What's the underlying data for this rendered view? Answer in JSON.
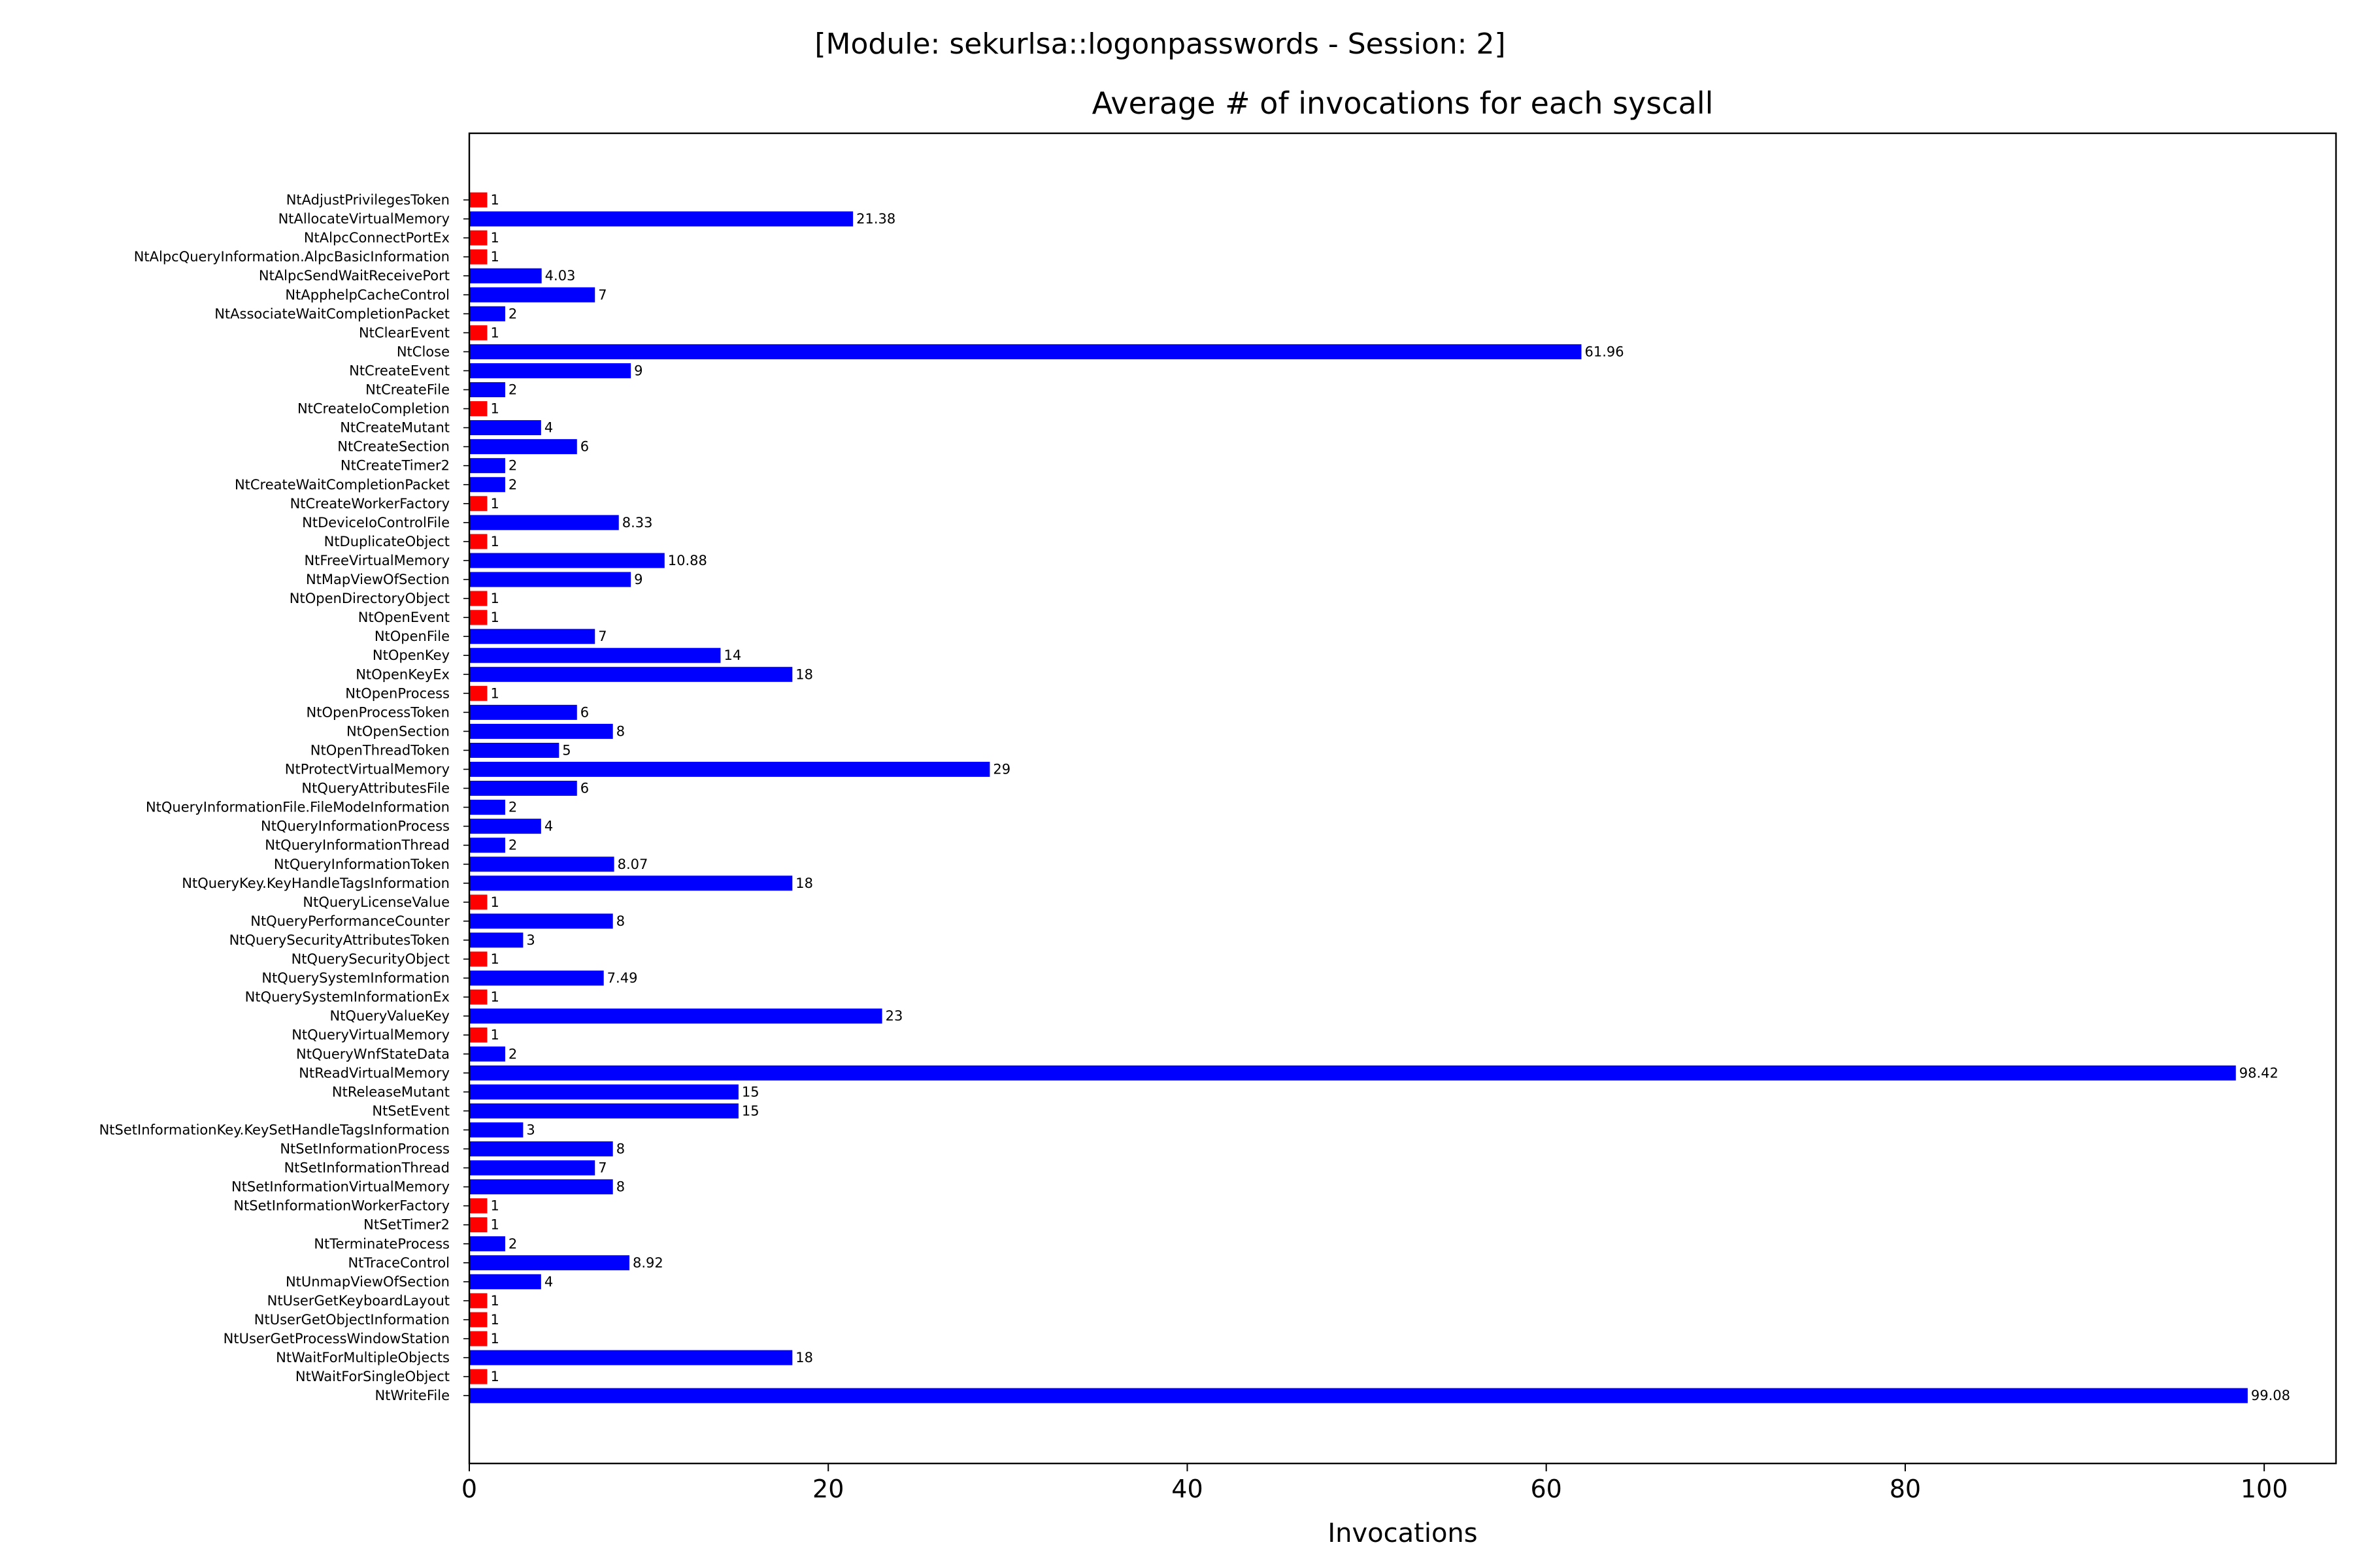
{
  "suptitle": "[Module: sekurlsa::logonpasswords - Session: 2]",
  "chart_data": {
    "type": "bar",
    "orientation": "horizontal",
    "title": "Average # of invocations for each syscall",
    "xlabel": "Invocations",
    "ylabel": "",
    "xlim": [
      0,
      104
    ],
    "xticks": [
      0,
      20,
      40,
      60,
      80,
      100
    ],
    "grid": false,
    "colors": {
      "low": "#ff0000",
      "normal": "#0000ff",
      "axis": "#000000"
    },
    "color_rule": "value equal to 1 is red, otherwise blue",
    "categories": [
      "NtAdjustPrivilegesToken",
      "NtAllocateVirtualMemory",
      "NtAlpcConnectPortEx",
      "NtAlpcQueryInformation.AlpcBasicInformation",
      "NtAlpcSendWaitReceivePort",
      "NtApphelpCacheControl",
      "NtAssociateWaitCompletionPacket",
      "NtClearEvent",
      "NtClose",
      "NtCreateEvent",
      "NtCreateFile",
      "NtCreateIoCompletion",
      "NtCreateMutant",
      "NtCreateSection",
      "NtCreateTimer2",
      "NtCreateWaitCompletionPacket",
      "NtCreateWorkerFactory",
      "NtDeviceIoControlFile",
      "NtDuplicateObject",
      "NtFreeVirtualMemory",
      "NtMapViewOfSection",
      "NtOpenDirectoryObject",
      "NtOpenEvent",
      "NtOpenFile",
      "NtOpenKey",
      "NtOpenKeyEx",
      "NtOpenProcess",
      "NtOpenProcessToken",
      "NtOpenSection",
      "NtOpenThreadToken",
      "NtProtectVirtualMemory",
      "NtQueryAttributesFile",
      "NtQueryInformationFile.FileModeInformation",
      "NtQueryInformationProcess",
      "NtQueryInformationThread",
      "NtQueryInformationToken",
      "NtQueryKey.KeyHandleTagsInformation",
      "NtQueryLicenseValue",
      "NtQueryPerformanceCounter",
      "NtQuerySecurityAttributesToken",
      "NtQuerySecurityObject",
      "NtQuerySystemInformation",
      "NtQuerySystemInformationEx",
      "NtQueryValueKey",
      "NtQueryVirtualMemory",
      "NtQueryWnfStateData",
      "NtReadVirtualMemory",
      "NtReleaseMutant",
      "NtSetEvent",
      "NtSetInformationKey.KeySetHandleTagsInformation",
      "NtSetInformationProcess",
      "NtSetInformationThread",
      "NtSetInformationVirtualMemory",
      "NtSetInformationWorkerFactory",
      "NtSetTimer2",
      "NtTerminateProcess",
      "NtTraceControl",
      "NtUnmapViewOfSection",
      "NtUserGetKeyboardLayout",
      "NtUserGetObjectInformation",
      "NtUserGetProcessWindowStation",
      "NtWaitForMultipleObjects",
      "NtWaitForSingleObject",
      "NtWriteFile"
    ],
    "values": [
      1,
      21.38,
      1,
      1,
      4.03,
      7,
      2,
      1,
      61.96,
      9,
      2,
      1,
      4,
      6,
      2,
      2,
      1,
      8.33,
      1,
      10.88,
      9,
      1,
      1,
      7,
      14,
      18,
      1,
      6,
      8,
      5,
      29,
      6,
      2,
      4,
      2,
      8.07,
      18,
      1,
      8,
      3,
      1,
      7.49,
      1,
      23,
      1,
      2,
      98.42,
      15,
      15,
      3,
      8,
      7,
      8,
      1,
      1,
      2,
      8.92,
      4,
      1,
      1,
      1,
      18,
      1,
      99.08
    ]
  }
}
